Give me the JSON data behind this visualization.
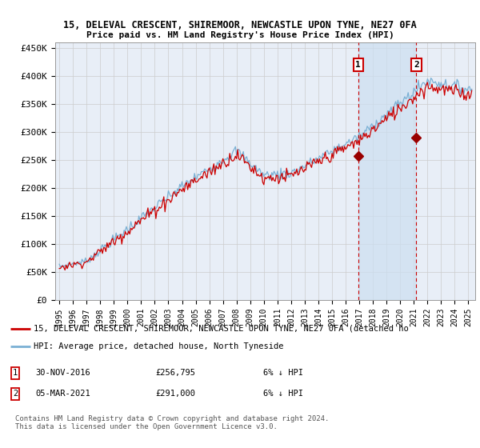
{
  "title1": "15, DELEVAL CRESCENT, SHIREMOOR, NEWCASTLE UPON TYNE, NE27 0FA",
  "title2": "Price paid vs. HM Land Registry's House Price Index (HPI)",
  "ylabel_ticks": [
    "£0",
    "£50K",
    "£100K",
    "£150K",
    "£200K",
    "£250K",
    "£300K",
    "£350K",
    "£400K",
    "£450K"
  ],
  "ytick_vals": [
    0,
    50000,
    100000,
    150000,
    200000,
    250000,
    300000,
    350000,
    400000,
    450000
  ],
  "ylim": [
    0,
    460000
  ],
  "xlim_start": 1994.7,
  "xlim_end": 2025.5,
  "background_color": "#e8eef7",
  "grid_color": "#cccccc",
  "sale1_date": 2016.92,
  "sale1_price": 256795,
  "sale2_date": 2021.18,
  "sale2_price": 291000,
  "legend_line1": "15, DELEVAL CRESCENT, SHIREMOOR, NEWCASTLE UPON TYNE, NE27 0FA (detached ho",
  "legend_line2": "HPI: Average price, detached house, North Tyneside",
  "annotation1_date": "30-NOV-2016",
  "annotation1_price": "£256,795",
  "annotation1_hpi": "6% ↓ HPI",
  "annotation2_date": "05-MAR-2021",
  "annotation2_price": "£291,000",
  "annotation2_hpi": "6% ↓ HPI",
  "footer": "Contains HM Land Registry data © Crown copyright and database right 2024.\nThis data is licensed under the Open Government Licence v3.0.",
  "line_color_red": "#cc0000",
  "line_color_blue": "#7ab0d4",
  "shade_color": "#ccdff0"
}
